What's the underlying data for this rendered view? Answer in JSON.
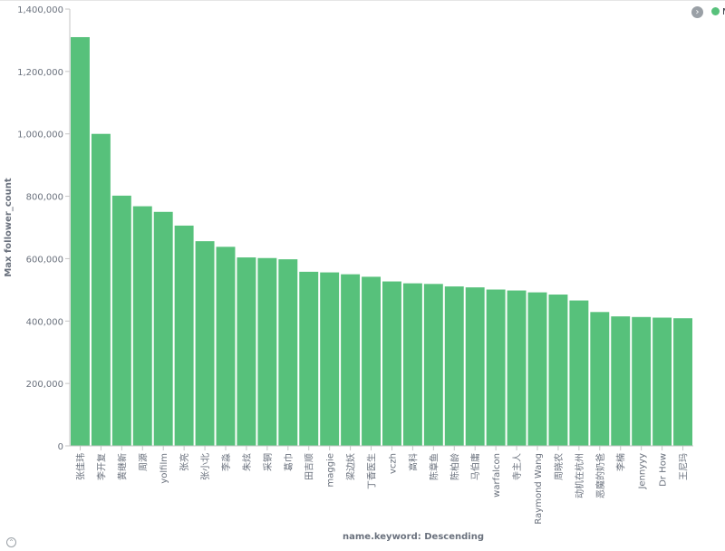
{
  "colors": {
    "bar": "#57c17b",
    "axis": "#c5c5c5",
    "tick_text": "#6a717d",
    "axis_title": "#6a717d"
  },
  "legend": {
    "toggle_icon": "chevron-right-icon",
    "toggle_glyph": "›",
    "series_label": "M",
    "placement": "top-right"
  },
  "chart_data": {
    "type": "bar",
    "xlabel": "name.keyword: Descending",
    "ylabel": "Max follower_count",
    "ylim": [
      0,
      1400000
    ],
    "yticks": [
      0,
      200000,
      400000,
      600000,
      800000,
      1000000,
      1200000,
      1400000
    ],
    "ytick_labels": [
      "0",
      "200,000",
      "400,000",
      "600,000",
      "800,000",
      "1,000,000",
      "1,200,000",
      "1,400,000"
    ],
    "grid": false,
    "categories": [
      "张佳玮",
      "李开复",
      "黄继新",
      "周源",
      "yolfilm",
      "张亮",
      "张小北",
      "李淼",
      "朱炫",
      "采铜",
      "葛巾",
      "田吉顺",
      "maggie",
      "梁边妖",
      "丁香医生",
      "vczh",
      "高科",
      "陈章鱼",
      "陈柏龄",
      "马伯庸",
      "warfalcon",
      "寺主人",
      "Raymond Wang",
      "周晓农",
      "动机在杭州",
      "恶魔的奶爸",
      "李楠",
      "Jennyyy",
      "Dr How",
      "王尼玛"
    ],
    "series": [
      {
        "name": "M",
        "values": [
          1310000,
          1000000,
          802000,
          768000,
          750000,
          706000,
          656000,
          638000,
          604000,
          602000,
          598000,
          558000,
          556000,
          550000,
          542000,
          527000,
          521000,
          519000,
          511000,
          508000,
          501000,
          498000,
          492000,
          485000,
          466000,
          429000,
          415000,
          413000,
          411000,
          409000
        ]
      }
    ]
  }
}
